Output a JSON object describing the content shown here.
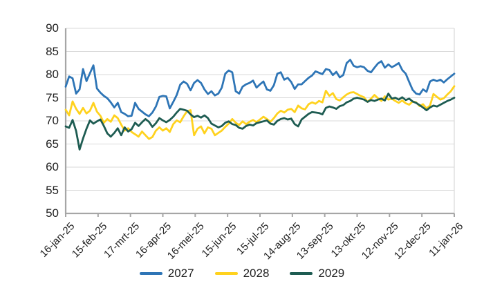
{
  "chart_data": {
    "type": "line",
    "title": "",
    "xlabel": "",
    "ylabel": "",
    "ylim": [
      50,
      90
    ],
    "y_ticks": [
      90,
      85,
      80,
      75,
      70,
      65,
      60,
      55,
      50
    ],
    "x_tick_labels": [
      "16-jan-25",
      "15-feb-25",
      "17-mrt-25",
      "16-apr-25",
      "16-mei-25",
      "15-jun-25",
      "15-jul-25",
      "14-aug-25",
      "13-sep-25",
      "13-okt-25",
      "12-nov-25",
      "12-dec-25",
      "11-jan-26"
    ],
    "grid": "horizontal",
    "legend_position": "bottom-center",
    "axis_color": "#a6a6a6",
    "grid_color": "#d9d9d9",
    "text_color": "#1f1f1f",
    "series": [
      {
        "name": "2027",
        "color": "#2E75B6",
        "values": [
          77.4,
          79.6,
          79.2,
          75.9,
          76.8,
          81.2,
          78.6,
          80.3,
          82.0,
          77.0,
          76.1,
          75.4,
          74.9,
          74.0,
          72.9,
          73.9,
          71.9,
          71.5,
          71.0,
          71.1,
          73.9,
          72.6,
          72.0,
          71.4,
          71.0,
          71.8,
          73.1,
          75.2,
          75.4,
          75.3,
          72.7,
          74.1,
          75.6,
          77.8,
          78.5,
          78.0,
          76.6,
          78.2,
          78.8,
          78.2,
          76.8,
          75.8,
          76.4,
          75.5,
          75.9,
          77.2,
          80.2,
          80.9,
          80.5,
          76.4,
          75.9,
          77.4,
          77.9,
          78.2,
          78.7,
          77.2,
          77.9,
          78.5,
          76.8,
          76.5,
          77.7,
          80.2,
          80.5,
          78.9,
          79.3,
          78.4,
          76.9,
          77.9,
          77.9,
          78.6,
          79.3,
          79.8,
          80.7,
          80.4,
          80.1,
          81.2,
          81.0,
          79.9,
          80.6,
          79.4,
          79.9,
          82.5,
          83.2,
          81.9,
          81.6,
          81.8,
          81.6,
          80.8,
          80.5,
          81.5,
          82.4,
          82.9,
          81.5,
          82.2,
          81.6,
          82.0,
          82.5,
          81.0,
          80.2,
          78.4,
          76.7,
          75.9,
          75.7,
          76.8,
          76.3,
          78.5,
          78.9,
          78.6,
          78.9,
          78.3,
          79.0,
          79.6,
          80.2
        ]
      },
      {
        "name": "2028",
        "color": "#FFD21E",
        "values": [
          72.4,
          71.2,
          74.2,
          72.6,
          71.5,
          72.8,
          71.6,
          72.2,
          73.9,
          72.0,
          71.1,
          69.6,
          70.4,
          69.8,
          71.2,
          70.6,
          69.2,
          67.9,
          68.4,
          67.6,
          67.1,
          66.6,
          67.7,
          66.9,
          66.1,
          66.5,
          67.9,
          68.6,
          67.9,
          68.4,
          67.6,
          69.3,
          70.1,
          69.7,
          71.0,
          72.1,
          72.3,
          66.9,
          68.3,
          68.8,
          67.3,
          68.6,
          68.3,
          66.9,
          67.4,
          67.9,
          68.7,
          69.4,
          70.4,
          69.6,
          69.1,
          69.9,
          69.3,
          69.8,
          70.2,
          69.7,
          70.3,
          70.9,
          70.4,
          69.8,
          70.6,
          71.6,
          72.2,
          71.8,
          72.4,
          72.6,
          71.9,
          73.3,
          72.7,
          72.5,
          73.6,
          74.0,
          73.7,
          74.3,
          74.0,
          76.5,
          75.4,
          76.0,
          74.7,
          74.4,
          75.1,
          75.7,
          76.1,
          76.2,
          75.8,
          75.4,
          75.1,
          74.1,
          74.8,
          75.6,
          74.9,
          74.3,
          75.3,
          74.6,
          74.8,
          74.3,
          73.9,
          74.4,
          73.8,
          73.5,
          74.2,
          74.0,
          73.2,
          73.6,
          72.7,
          73.3,
          75.8,
          75.2,
          74.6,
          74.9,
          75.7,
          76.4,
          77.5
        ]
      },
      {
        "name": "2029",
        "color": "#1E5C52",
        "values": [
          68.8,
          68.5,
          70.2,
          67.8,
          63.8,
          66.2,
          68.3,
          70.1,
          69.4,
          69.9,
          70.3,
          68.9,
          67.3,
          66.6,
          67.4,
          68.4,
          66.9,
          68.6,
          67.7,
          68.2,
          69.6,
          68.9,
          69.7,
          70.4,
          69.8,
          68.7,
          69.5,
          70.6,
          70.1,
          69.7,
          70.2,
          70.9,
          71.8,
          72.6,
          72.4,
          72.2,
          71.4,
          70.8,
          71.1,
          70.7,
          71.2,
          70.6,
          69.4,
          69.0,
          68.6,
          68.9,
          69.6,
          69.9,
          69.3,
          69.1,
          68.5,
          68.3,
          68.9,
          69.2,
          69.0,
          69.5,
          69.7,
          69.9,
          70.1,
          69.4,
          69.2,
          70.0,
          70.4,
          70.6,
          70.3,
          70.5,
          69.3,
          68.8,
          70.3,
          70.9,
          71.5,
          71.9,
          71.8,
          71.7,
          71.4,
          72.8,
          73.1,
          72.9,
          72.6,
          73.2,
          73.4,
          74.0,
          74.3,
          74.8,
          75.0,
          74.8,
          74.6,
          74.1,
          74.5,
          74.3,
          74.6,
          74.8,
          74.4,
          75.9,
          74.8,
          75.0,
          74.6,
          75.1,
          74.5,
          74.8,
          74.2,
          73.9,
          73.4,
          72.9,
          72.3,
          72.9,
          73.3,
          73.1,
          73.5,
          73.9,
          74.3,
          74.6,
          75.0
        ]
      }
    ]
  }
}
